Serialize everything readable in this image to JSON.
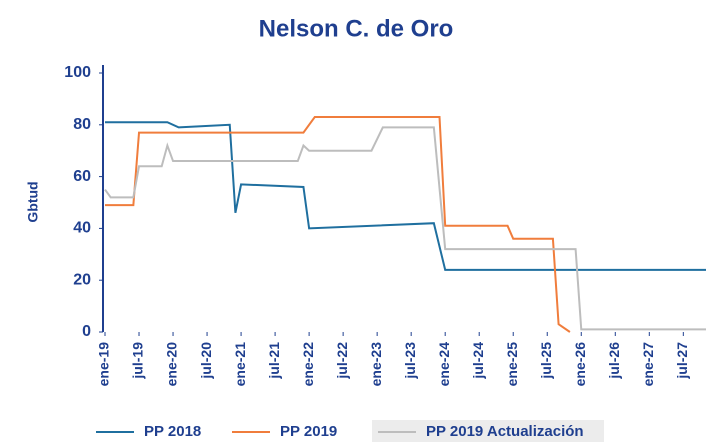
{
  "chart_data": {
    "type": "line",
    "title": "Nelson C. de Oro",
    "ylabel": "Gbtud",
    "xlim": [
      "2019-01",
      "2027-11"
    ],
    "xticks": [
      {
        "value": "2019-01",
        "label": "ene-19"
      },
      {
        "value": "2019-07",
        "label": "jul-19"
      },
      {
        "value": "2020-01",
        "label": "ene-20"
      },
      {
        "value": "2020-07",
        "label": "jul-20"
      },
      {
        "value": "2021-01",
        "label": "ene-21"
      },
      {
        "value": "2021-07",
        "label": "jul-21"
      },
      {
        "value": "2022-01",
        "label": "ene-22"
      },
      {
        "value": "2022-07",
        "label": "jul-22"
      },
      {
        "value": "2023-01",
        "label": "ene-23"
      },
      {
        "value": "2023-07",
        "label": "jul-23"
      },
      {
        "value": "2024-01",
        "label": "ene-24"
      },
      {
        "value": "2024-07",
        "label": "jul-24"
      },
      {
        "value": "2025-01",
        "label": "ene-25"
      },
      {
        "value": "2025-07",
        "label": "jul-25"
      },
      {
        "value": "2026-01",
        "label": "ene-26"
      },
      {
        "value": "2026-07",
        "label": "jul-26"
      },
      {
        "value": "2027-01",
        "label": "ene-27"
      },
      {
        "value": "2027-07",
        "label": "jul-27"
      }
    ],
    "ylim": [
      0,
      100
    ],
    "yticks": [
      0,
      20,
      40,
      60,
      80,
      100
    ],
    "series": [
      {
        "name": "PP 2018",
        "color": "#1f6f9f",
        "x": [
          "2019-01",
          "2019-12",
          "2020-02",
          "2020-11",
          "2020-12",
          "2021-01",
          "2021-12",
          "2022-01",
          "2023-11",
          "2024-01",
          "2027-11"
        ],
        "values": [
          81,
          81,
          79,
          80,
          46,
          57,
          56,
          40,
          42,
          24,
          24
        ]
      },
      {
        "name": "PP 2019",
        "color": "#f07d3c",
        "x": [
          "2019-01",
          "2019-06",
          "2019-07",
          "2021-12",
          "2022-02",
          "2023-12",
          "2024-01",
          "2024-12",
          "2025-01",
          "2025-08",
          "2025-09",
          "2025-11"
        ],
        "values": [
          49,
          49,
          77,
          77,
          83,
          83,
          41,
          41,
          36,
          36,
          3,
          0
        ]
      },
      {
        "name": "PP 2019 Actualización",
        "color": "#bdbdbd",
        "x": [
          "2019-01",
          "2019-02",
          "2019-06",
          "2019-07",
          "2019-11",
          "2019-12",
          "2020-01",
          "2021-11",
          "2021-12",
          "2022-01",
          "2022-12",
          "2023-02",
          "2023-11",
          "2024-01",
          "2025-12",
          "2026-01",
          "2027-11"
        ],
        "values": [
          55,
          52,
          52,
          64,
          64,
          72,
          66,
          66,
          72,
          70,
          70,
          79,
          79,
          32,
          32,
          1,
          1
        ]
      }
    ]
  }
}
